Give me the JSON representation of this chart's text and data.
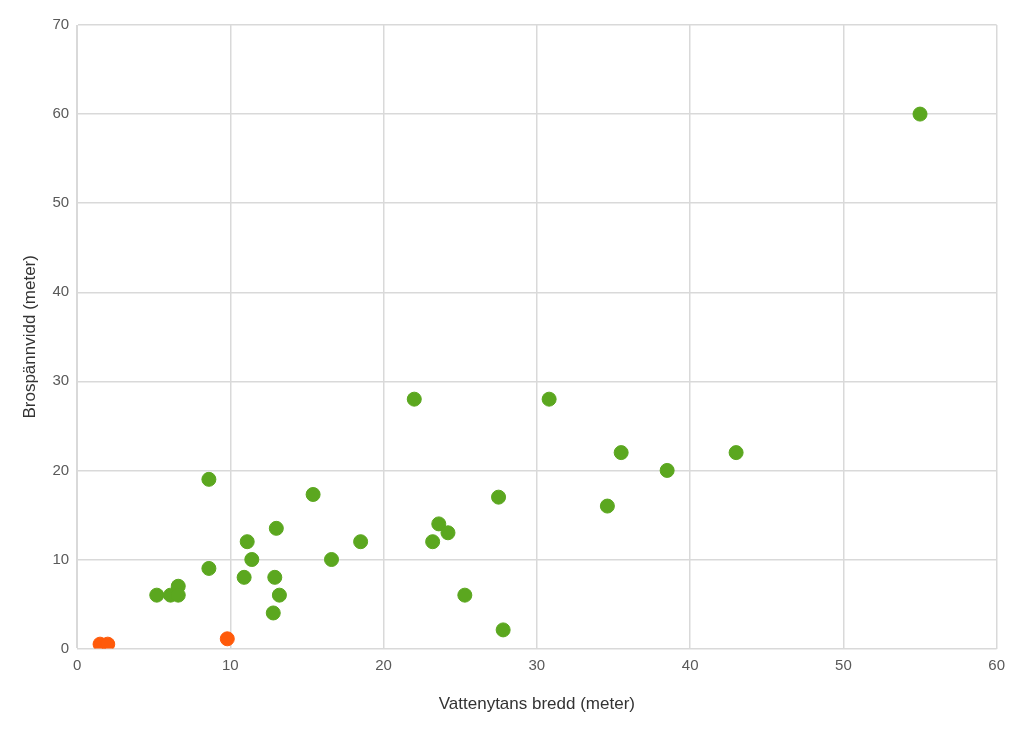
{
  "chart_data": {
    "type": "scatter",
    "xlabel": "Vattenytans bredd (meter)",
    "ylabel": "Brospännvidd (meter)",
    "series": [
      {
        "color": "#5ba71f",
        "x": [
          5.2,
          6.1,
          6.6,
          6.6,
          8.6,
          8.6,
          10.9,
          11.1,
          11.4,
          12.8,
          12.9,
          13,
          13.2,
          15.4,
          16.6,
          18.5,
          22,
          23.2,
          23.6,
          24.2,
          25.3,
          27.5,
          27.8,
          30.8,
          34.6,
          35.5,
          38.5,
          43,
          55
        ],
        "values": [
          6,
          6,
          7,
          6,
          9,
          19,
          8,
          12,
          10,
          4,
          8,
          13.5,
          6,
          17.3,
          10,
          12,
          28,
          12,
          14,
          13,
          6,
          17,
          2.1,
          28,
          16,
          22,
          20,
          22,
          60
        ]
      },
      {
        "color": "#ff5a0a",
        "x": [
          1.5,
          2,
          9.8
        ],
        "values": [
          0.5,
          0.5,
          1.1
        ]
      }
    ],
    "xlim": [
      0,
      60
    ],
    "xticks": [
      0,
      10,
      20,
      30,
      40,
      50,
      60
    ],
    "ylim": [
      0,
      70
    ],
    "yticks": [
      0,
      10,
      20,
      30,
      40,
      50,
      60,
      70
    ],
    "grid": true,
    "marker": "circle",
    "legend": false
  }
}
